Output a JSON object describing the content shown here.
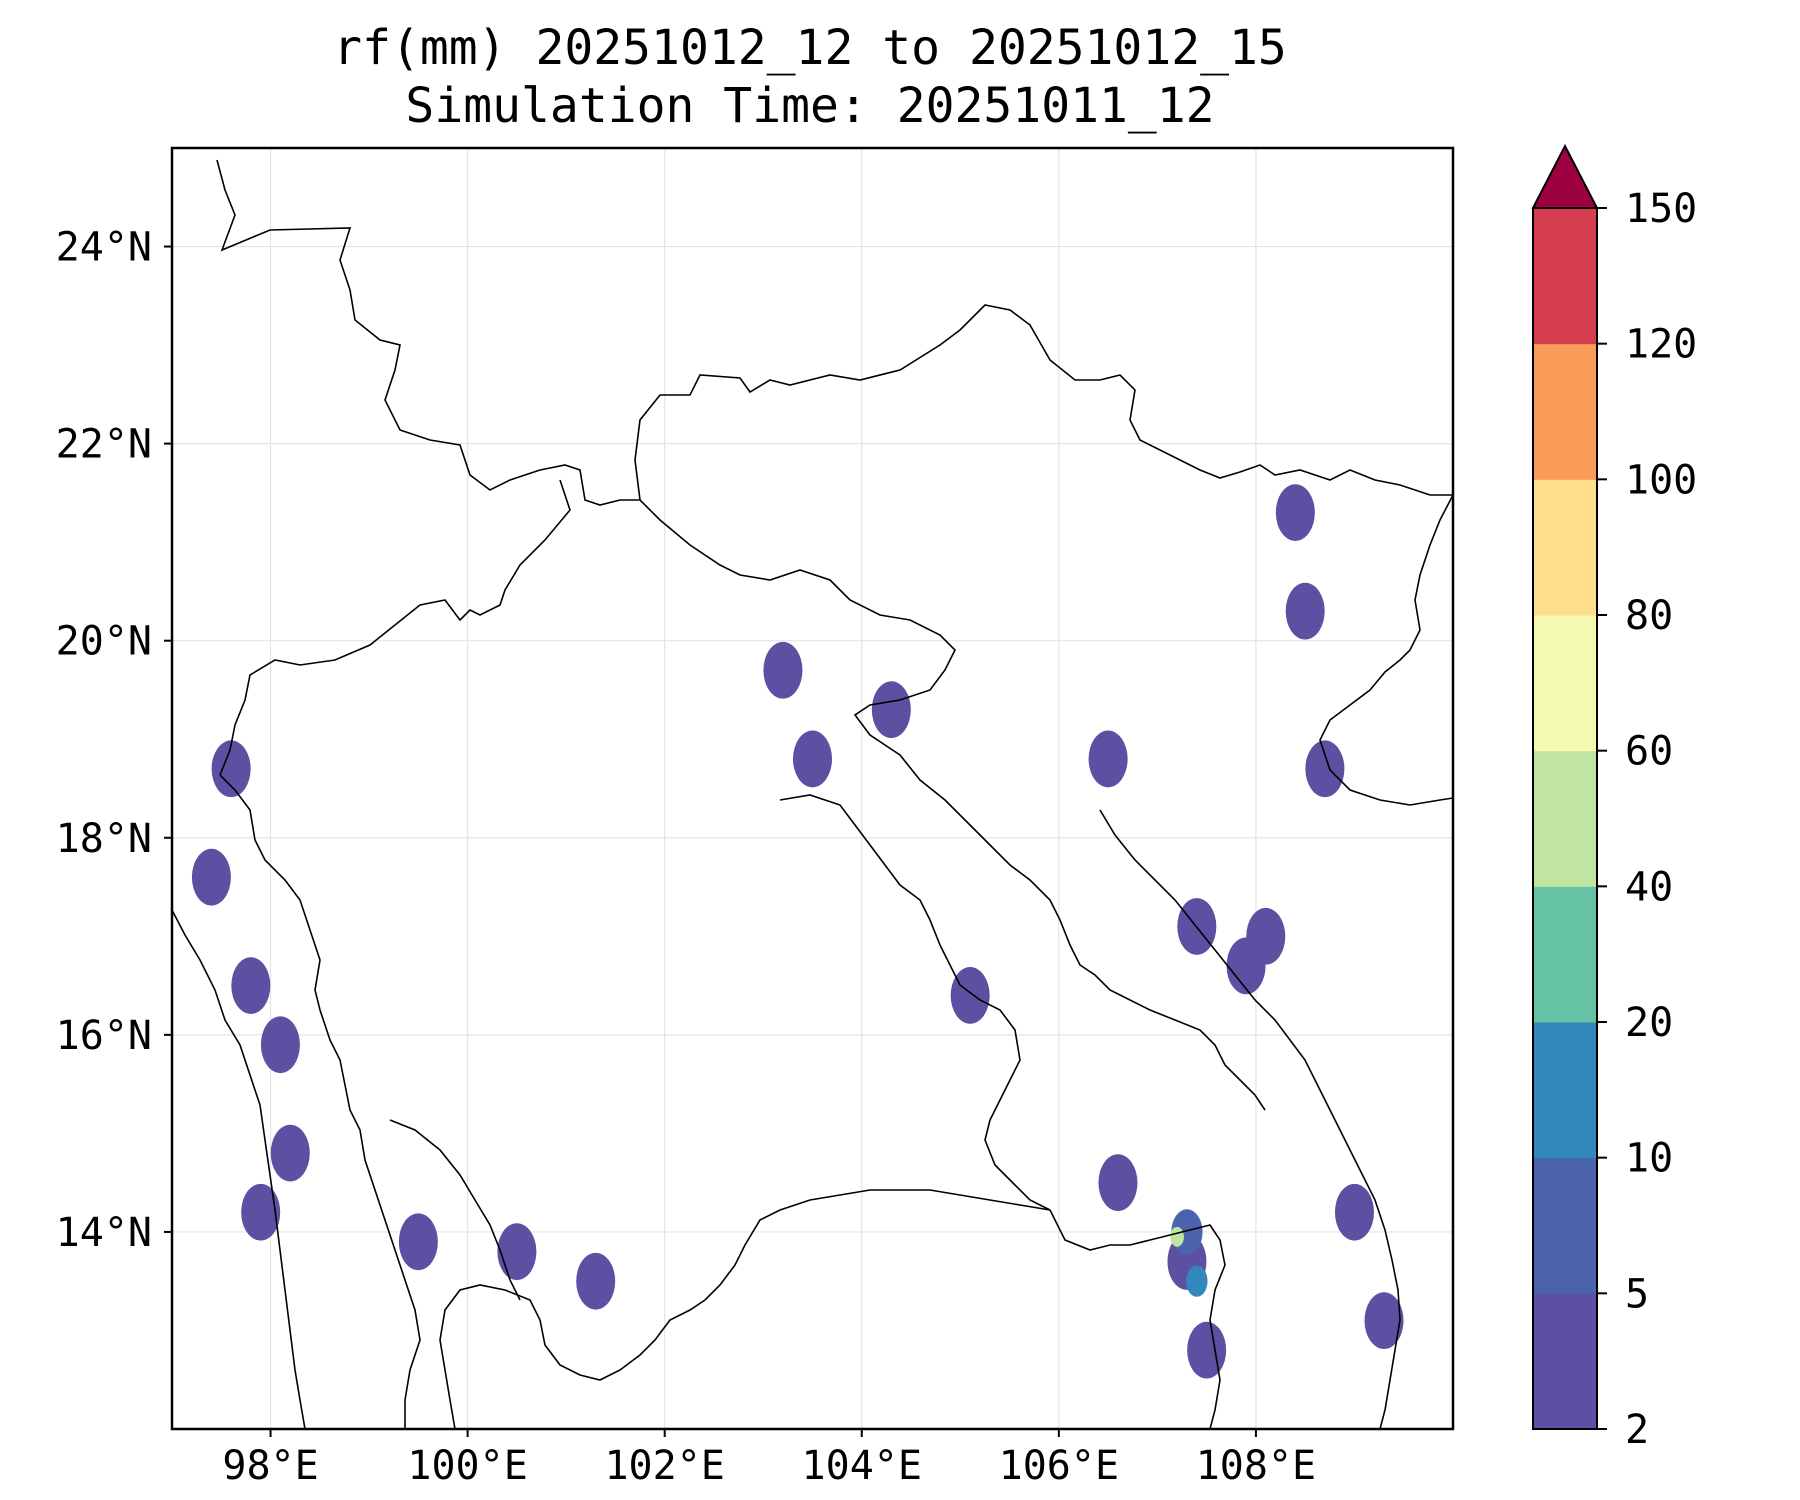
{
  "title_line1": "rf(mm) 20251012_12 to 20251012_15",
  "title_line2": "Simulation Time: 20251011_12",
  "map": {
    "lon_range": [
      97.0,
      110.0
    ],
    "lat_range": [
      12.0,
      25.0
    ],
    "lon_ticks": [
      "98°E",
      "100°E",
      "102°E",
      "104°E",
      "106°E",
      "108°E"
    ],
    "lat_ticks": [
      "24°N",
      "22°N",
      "20°N",
      "18°N",
      "16°N",
      "14°N"
    ],
    "grid": true
  },
  "colorbar": {
    "unit": "mm",
    "levels": [
      "2",
      "5",
      "10",
      "20",
      "40",
      "60",
      "80",
      "100",
      "120",
      "150"
    ],
    "colors": [
      "#5e4fa2",
      "#4b63ad",
      "#3288bd",
      "#66c2a5",
      "#bfe5a0",
      "#f3fab0",
      "#fddf8b",
      "#f99b59",
      "#d53e4f"
    ],
    "extend_color": "#9e0142",
    "extend": "max"
  },
  "rain_areas": [
    {
      "lon": 97.4,
      "lat": 17.6,
      "level": 1
    },
    {
      "lon": 97.8,
      "lat": 16.5,
      "level": 1
    },
    {
      "lon": 98.1,
      "lat": 15.9,
      "level": 1
    },
    {
      "lon": 98.2,
      "lat": 14.8,
      "level": 1
    },
    {
      "lon": 97.9,
      "lat": 14.2,
      "level": 1
    },
    {
      "lon": 97.6,
      "lat": 18.7,
      "level": 1
    },
    {
      "lon": 99.5,
      "lat": 13.9,
      "level": 1
    },
    {
      "lon": 100.5,
      "lat": 13.8,
      "level": 1
    },
    {
      "lon": 101.3,
      "lat": 13.5,
      "level": 1
    },
    {
      "lon": 103.2,
      "lat": 19.7,
      "level": 1
    },
    {
      "lon": 103.5,
      "lat": 18.8,
      "level": 1
    },
    {
      "lon": 104.3,
      "lat": 19.3,
      "level": 1
    },
    {
      "lon": 105.1,
      "lat": 16.4,
      "level": 1
    },
    {
      "lon": 106.5,
      "lat": 18.8,
      "level": 1
    },
    {
      "lon": 107.4,
      "lat": 17.1,
      "level": 1
    },
    {
      "lon": 107.9,
      "lat": 16.7,
      "level": 1
    },
    {
      "lon": 108.1,
      "lat": 17.0,
      "level": 1
    },
    {
      "lon": 108.5,
      "lat": 20.3,
      "level": 1
    },
    {
      "lon": 108.7,
      "lat": 18.7,
      "level": 1
    },
    {
      "lon": 108.4,
      "lat": 21.3,
      "level": 1
    },
    {
      "lon": 107.3,
      "lat": 13.7,
      "level": 1
    },
    {
      "lon": 107.5,
      "lat": 12.8,
      "level": 1
    },
    {
      "lon": 109.0,
      "lat": 14.2,
      "level": 1
    },
    {
      "lon": 109.3,
      "lat": 13.1,
      "level": 1
    },
    {
      "lon": 106.6,
      "lat": 14.5,
      "level": 1
    },
    {
      "lon": 107.3,
      "lat": 14.0,
      "level": 2
    },
    {
      "lon": 107.4,
      "lat": 13.5,
      "level": 3
    },
    {
      "lon": 107.2,
      "lat": 13.95,
      "level": 5
    }
  ]
}
